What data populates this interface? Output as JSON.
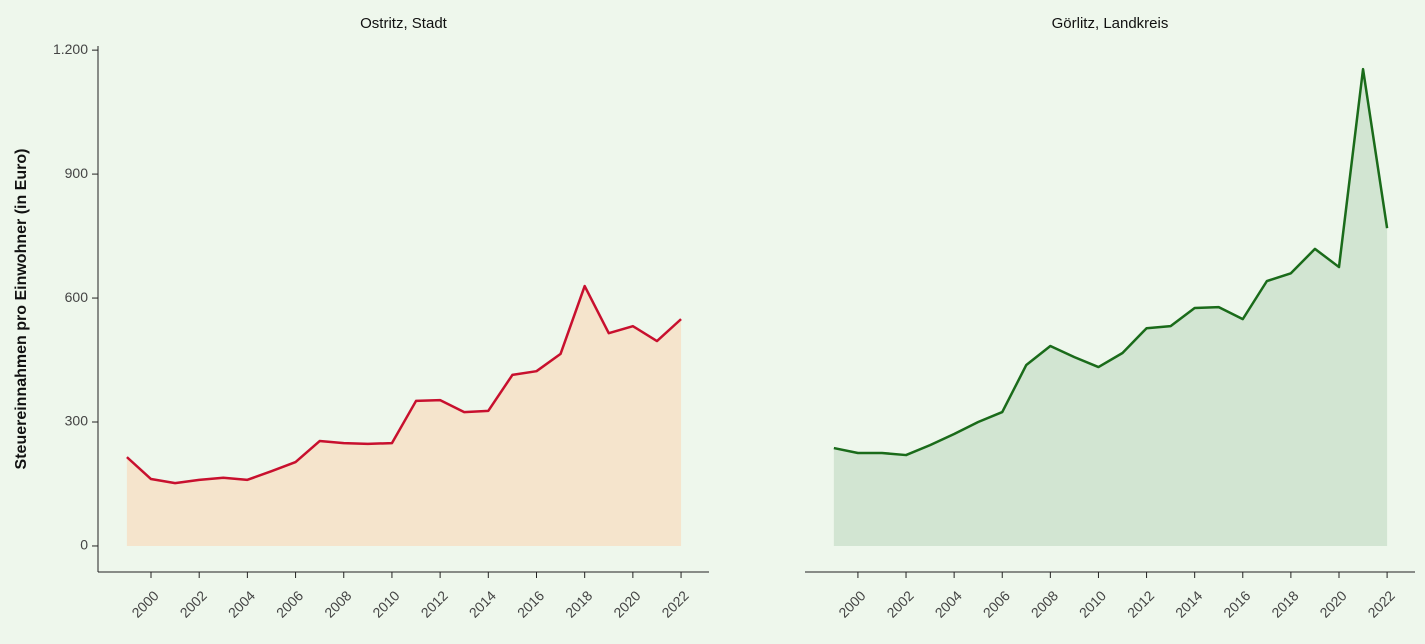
{
  "chart_data": [
    {
      "type": "area",
      "title": "Ostritz, Stadt",
      "ylabel": "Steuereinnahmen pro Einwohner (in Euro)",
      "x": [
        1999,
        2000,
        2001,
        2002,
        2003,
        2004,
        2005,
        2006,
        2007,
        2008,
        2009,
        2010,
        2011,
        2012,
        2013,
        2014,
        2015,
        2016,
        2017,
        2018,
        2019,
        2020,
        2021,
        2022
      ],
      "values": [
        215,
        162,
        152,
        160,
        165,
        160,
        181,
        203,
        254,
        249,
        247,
        249,
        351,
        353,
        324,
        327,
        414,
        423,
        465,
        629,
        515,
        532,
        496,
        549
      ],
      "color": "#c8102e",
      "fill": "#f5e4cc",
      "xlim": [
        1997.8,
        2023.16
      ],
      "xticks": [
        2000,
        2002,
        2004,
        2006,
        2008,
        2010,
        2012,
        2014,
        2016,
        2018,
        2020,
        2022
      ],
      "ylim": [
        -63,
        1210
      ],
      "yticks": [
        0,
        300,
        600,
        900,
        {
          "value": 1200,
          "label": "1.200"
        }
      ]
    },
    {
      "type": "area",
      "title": "Görlitz, Landkreis",
      "x": [
        1999,
        2000,
        2001,
        2002,
        2003,
        2004,
        2005,
        2006,
        2007,
        2008,
        2009,
        2010,
        2011,
        2012,
        2013,
        2014,
        2015,
        2016,
        2017,
        2018,
        2019,
        2020,
        2021,
        2022
      ],
      "values": [
        237,
        225,
        225,
        220,
        244,
        271,
        300,
        324,
        438,
        484,
        457,
        433,
        467,
        527,
        532,
        576,
        578,
        549,
        641,
        660,
        719,
        675,
        1154,
        769
      ],
      "color": "#1a6b1a",
      "fill": "#d2e5d2",
      "xlim": [
        1997.8,
        2023.16
      ],
      "xticks": [
        2000,
        2002,
        2004,
        2006,
        2008,
        2010,
        2012,
        2014,
        2016,
        2018,
        2020,
        2022
      ],
      "ylim": [
        -63,
        1210
      ]
    }
  ]
}
